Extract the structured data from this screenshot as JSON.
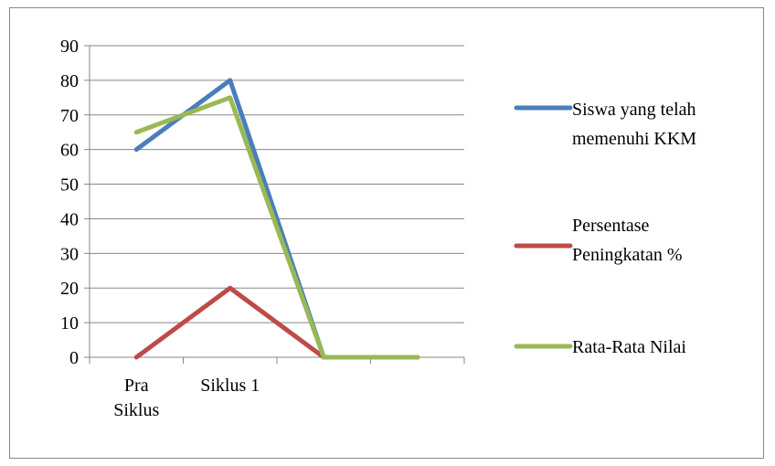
{
  "chart_data": {
    "type": "line",
    "categories": [
      "Pra Siklus",
      "Siklus 1",
      "",
      ""
    ],
    "category_label_lines": [
      [
        "Pra",
        "Siklus"
      ],
      [
        "Siklus 1"
      ],
      [],
      []
    ],
    "series": [
      {
        "name": "Siswa yang telah memenuhi KKM",
        "legend_lines": [
          "Siswa yang telah",
          "memenuhi KKM"
        ],
        "values": [
          60,
          80,
          0,
          0
        ],
        "color": "#4a7ebb"
      },
      {
        "name": "Persentase Peningkatan %",
        "legend_lines": [
          "Persentase",
          "Peningkatan %"
        ],
        "values": [
          0,
          20,
          0,
          0
        ],
        "color": "#be4b48"
      },
      {
        "name": "Rata-Rata Nilai",
        "legend_lines": [
          "Rata-Rata Nilai"
        ],
        "values": [
          65,
          75,
          0,
          0
        ],
        "color": "#98b954"
      }
    ],
    "ylim": [
      0,
      90
    ],
    "yticks": [
      0,
      10,
      20,
      30,
      40,
      50,
      60,
      70,
      80,
      90
    ],
    "grid": true,
    "legend_position": "right",
    "title": "",
    "xlabel": "",
    "ylabel": ""
  }
}
